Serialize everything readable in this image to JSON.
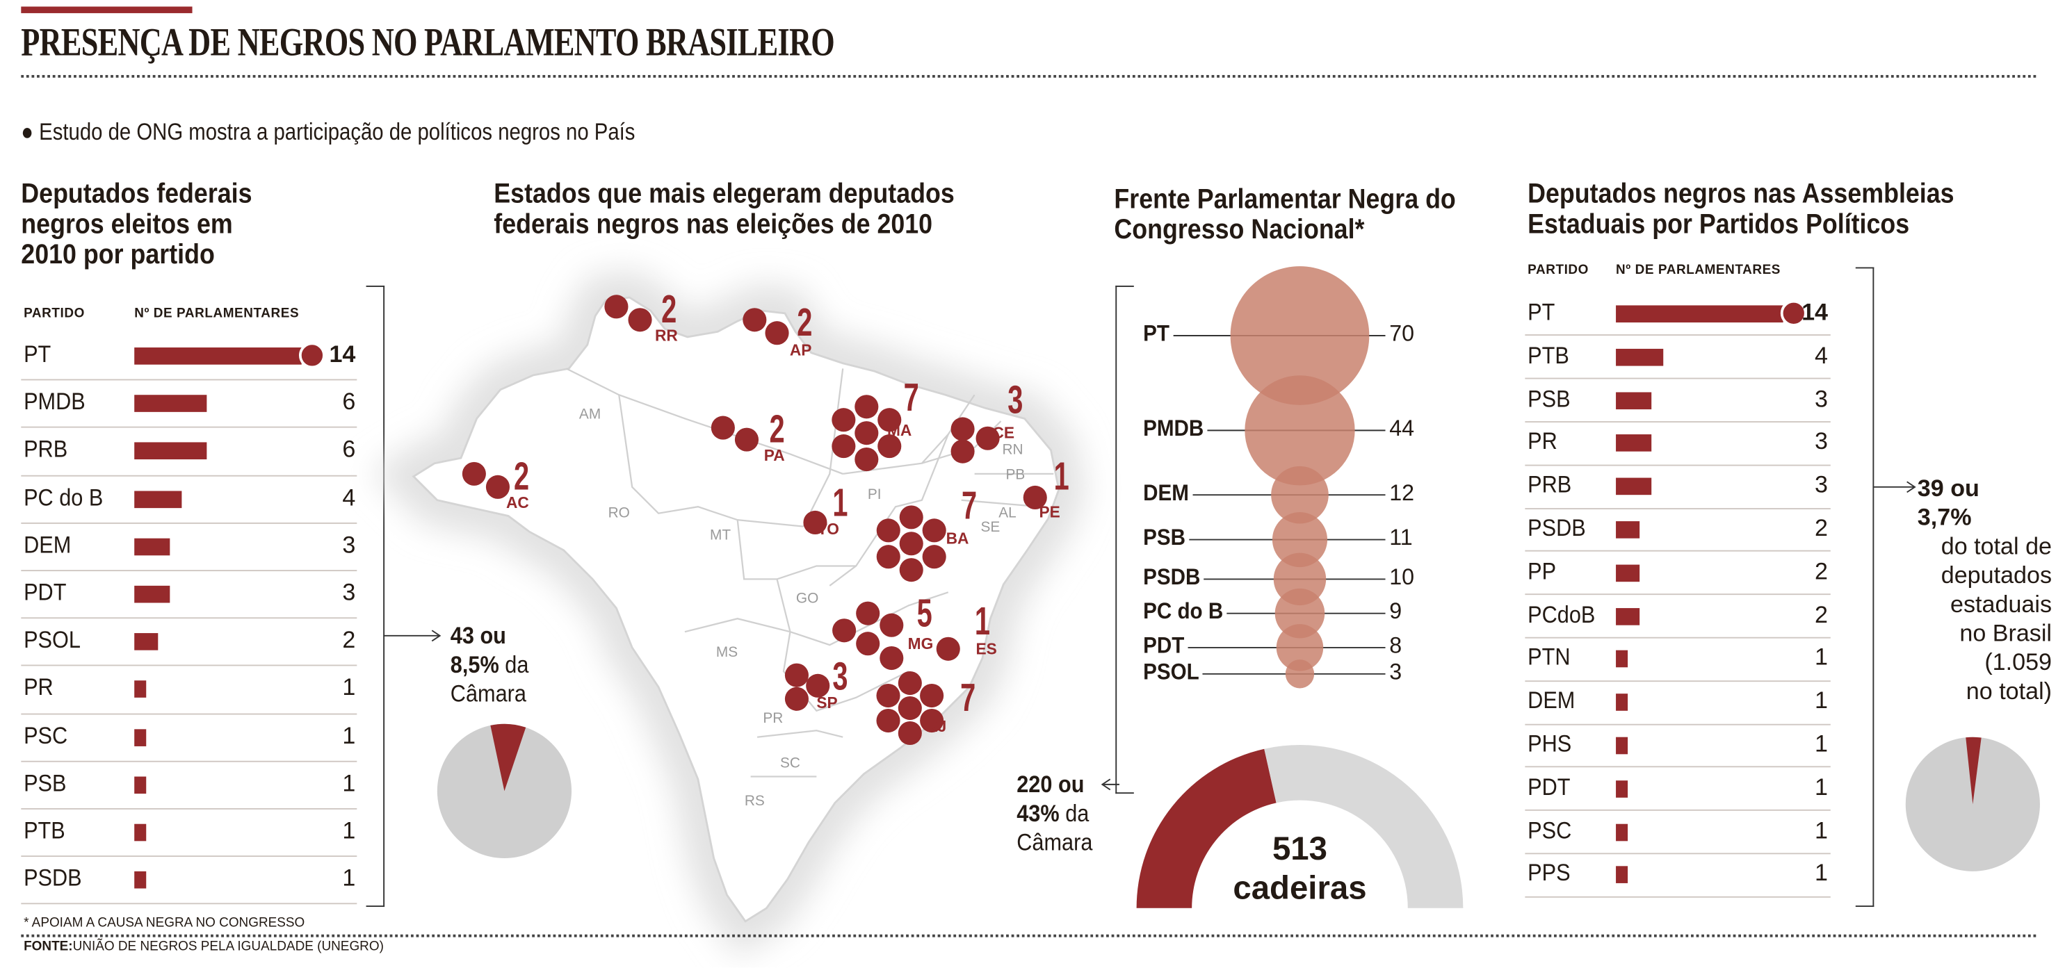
{
  "header": {
    "title": "PRESENÇA DE NEGROS NO PARLAMENTO BRASILEIRO",
    "subtitle": "Estudo de ONG mostra a participação de políticos negros no País"
  },
  "colors": {
    "accent": "#962a2c",
    "bubble": "#c9826e",
    "gray": "#cfcfcf",
    "map": "#ffffff"
  },
  "chart_data": [
    {
      "type": "bar",
      "id": "federal",
      "title": "Deputados federais negros eleitos em 2010 por partido",
      "col_party": "PARTIDO",
      "col_count": "Nº DE PARLAMENTARES",
      "categories": [
        "PT",
        "PMDB",
        "PRB",
        "PC do B",
        "DEM",
        "PDT",
        "PSOL",
        "PR",
        "PSC",
        "PSB",
        "PTB",
        "PSDB"
      ],
      "values": [
        14,
        6,
        6,
        4,
        3,
        3,
        2,
        1,
        1,
        1,
        1,
        1
      ],
      "summary": {
        "count": "43 ou",
        "pct": "8,5%",
        "rest1": "da",
        "rest2": "Câmara"
      },
      "pie_share": 0.085
    },
    {
      "type": "map",
      "id": "states",
      "title": "Estados que mais elegeram deputados federais negros nas eleições de 2010",
      "states": [
        {
          "uf": "RR",
          "value": 2
        },
        {
          "uf": "AP",
          "value": 2
        },
        {
          "uf": "PA",
          "value": 2
        },
        {
          "uf": "MA",
          "value": 7
        },
        {
          "uf": "CE",
          "value": 3
        },
        {
          "uf": "AC",
          "value": 2
        },
        {
          "uf": "TO",
          "value": 1
        },
        {
          "uf": "PE",
          "value": 1
        },
        {
          "uf": "BA",
          "value": 7
        },
        {
          "uf": "MG",
          "value": 5
        },
        {
          "uf": "ES",
          "value": 1
        },
        {
          "uf": "SP",
          "value": 3
        },
        {
          "uf": "RJ",
          "value": 7
        }
      ],
      "other_states": [
        "AM",
        "RO",
        "MT",
        "PI",
        "RN",
        "PB",
        "AL",
        "SE",
        "GO",
        "MS",
        "PR",
        "SC",
        "RS"
      ]
    },
    {
      "type": "bubble",
      "id": "frente",
      "title": "Frente Parlamentar Negra do Congresso Nacional*",
      "categories": [
        "PT",
        "PMDB",
        "DEM",
        "PSB",
        "PSDB",
        "PC do B",
        "PDT",
        "PSOL"
      ],
      "values": [
        70,
        44,
        12,
        11,
        10,
        9,
        8,
        3
      ],
      "summary": {
        "count": "220 ou",
        "pct": "43%",
        "rest1": "da",
        "rest2": "Câmara"
      },
      "gauge": {
        "total": "513",
        "label": "cadeiras",
        "share": 0.43
      }
    },
    {
      "type": "bar",
      "id": "estaduais",
      "title": "Deputados negros nas Assembleias Estaduais por Partidos Políticos",
      "col_party": "PARTIDO",
      "col_count": "Nº DE PARLAMENTARES",
      "categories": [
        "PT",
        "PTB",
        "PSB",
        "PR",
        "PRB",
        "PSDB",
        "PP",
        "PCdoB",
        "PTN",
        "DEM",
        "PHS",
        "PDT",
        "PSC",
        "PPS"
      ],
      "values": [
        14,
        4,
        3,
        3,
        3,
        2,
        2,
        2,
        1,
        1,
        1,
        1,
        1,
        1
      ],
      "summary": {
        "count": "39 ou",
        "pct": "3,7%",
        "l1": "do total de",
        "l2": "deputados",
        "l3": "estaduais",
        "l4": "no Brasil",
        "l5": "(1.059",
        "l6": "no total)"
      },
      "pie_share": 0.037
    }
  ],
  "footer": {
    "note": "* APOIAM A CAUSA NEGRA NO CONGRESSO",
    "source_label": "FONTE:",
    "source": "UNIÃO DE NEGROS PELA IGUALDADE (UNEGRO)"
  }
}
